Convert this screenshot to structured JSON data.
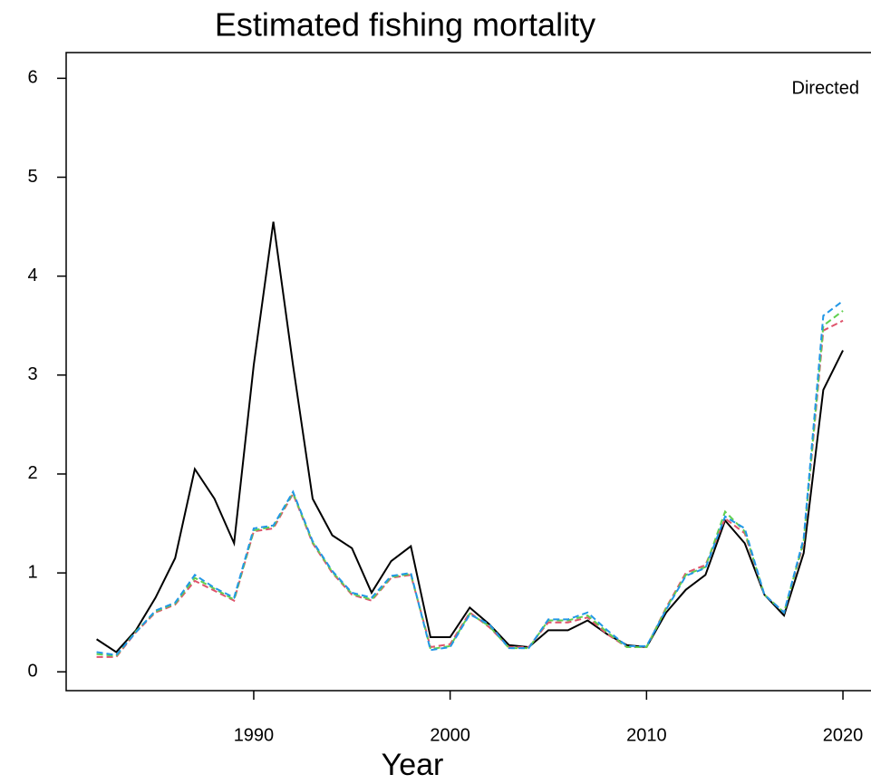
{
  "chart_data": {
    "type": "line",
    "title": "Estimated fishing mortality",
    "x_label": "Year",
    "annotation": "Directed",
    "x": [
      1982,
      1983,
      1984,
      1985,
      1986,
      1987,
      1988,
      1989,
      1990,
      1991,
      1992,
      1993,
      1994,
      1995,
      1996,
      1997,
      1998,
      1999,
      2000,
      2001,
      2002,
      2003,
      2004,
      2005,
      2006,
      2007,
      2008,
      2009,
      2010,
      2011,
      2012,
      2013,
      2014,
      2015,
      2016,
      2017,
      2018,
      2019,
      2020
    ],
    "series": [
      {
        "color": "#000000",
        "dash": false,
        "values": [
          0.33,
          0.2,
          0.42,
          0.75,
          1.15,
          2.05,
          1.75,
          1.3,
          3.1,
          4.55,
          3.1,
          1.75,
          1.38,
          1.25,
          0.8,
          1.12,
          1.27,
          0.35,
          0.35,
          0.65,
          0.48,
          0.27,
          0.25,
          0.42,
          0.42,
          0.52,
          0.38,
          0.27,
          0.25,
          0.6,
          0.83,
          0.98,
          1.53,
          1.3,
          0.78,
          0.57,
          1.2,
          2.85,
          3.25
        ]
      },
      {
        "color": "#df536b",
        "dash": true,
        "values": [
          0.15,
          0.15,
          0.4,
          0.6,
          0.68,
          0.92,
          0.82,
          0.72,
          1.42,
          1.45,
          1.8,
          1.3,
          1.0,
          0.78,
          0.72,
          0.95,
          0.98,
          0.25,
          0.28,
          0.6,
          0.45,
          0.25,
          0.25,
          0.5,
          0.5,
          0.55,
          0.38,
          0.25,
          0.25,
          0.65,
          1.0,
          1.08,
          1.55,
          1.4,
          0.78,
          0.6,
          1.3,
          3.45,
          3.55
        ]
      },
      {
        "color": "#61d04f",
        "dash": true,
        "values": [
          0.18,
          0.16,
          0.41,
          0.61,
          0.69,
          0.95,
          0.84,
          0.73,
          1.43,
          1.47,
          1.81,
          1.31,
          1.01,
          0.79,
          0.73,
          0.96,
          0.99,
          0.23,
          0.26,
          0.59,
          0.46,
          0.24,
          0.24,
          0.52,
          0.52,
          0.57,
          0.4,
          0.25,
          0.25,
          0.64,
          0.98,
          1.06,
          1.62,
          1.42,
          0.78,
          0.6,
          1.32,
          3.5,
          3.65
        ]
      },
      {
        "color": "#2297e6",
        "dash": true,
        "values": [
          0.2,
          0.17,
          0.4,
          0.62,
          0.7,
          0.98,
          0.85,
          0.75,
          1.45,
          1.48,
          1.82,
          1.32,
          1.02,
          0.8,
          0.75,
          0.97,
          1.0,
          0.22,
          0.25,
          0.58,
          0.48,
          0.24,
          0.24,
          0.53,
          0.53,
          0.6,
          0.42,
          0.26,
          0.26,
          0.63,
          0.97,
          1.05,
          1.57,
          1.45,
          0.78,
          0.6,
          1.35,
          3.6,
          3.75
        ]
      }
    ],
    "xlim": [
      1980.45,
      2021.6
    ],
    "ylim": [
      -0.19,
      6.26
    ],
    "xticks": [
      1990,
      2000,
      2010,
      2020
    ],
    "yticks": [
      0,
      1,
      2,
      3,
      4,
      5,
      6
    ]
  }
}
